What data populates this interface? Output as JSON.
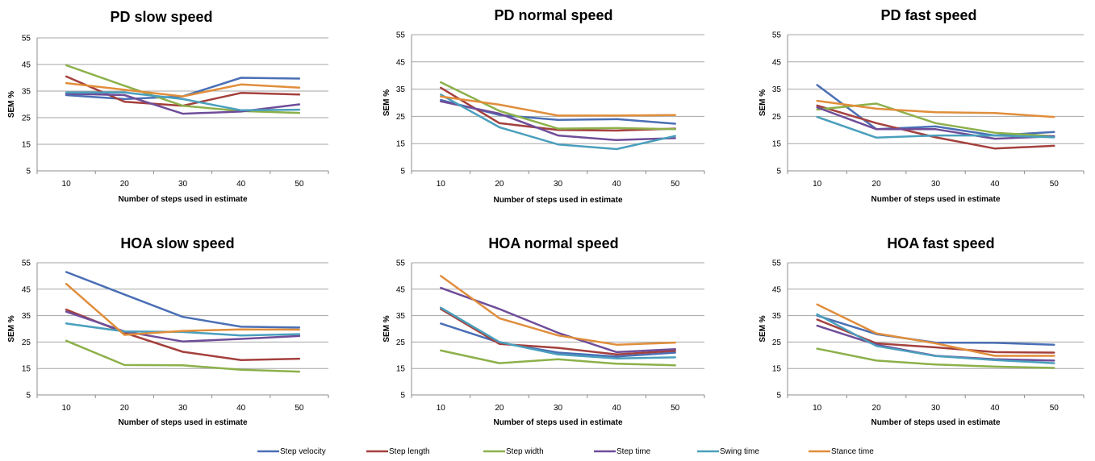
{
  "colors": {
    "Step velocity": "#4a6fb5",
    "Step length": "#a4403d",
    "Step width": "#8cb04a",
    "Step time": "#6f4d99",
    "Swing time": "#4a9fbd",
    "Stance time": "#e08e3b"
  },
  "legend_placement": "bottom-center",
  "chart_data": [
    {
      "type": "line",
      "title": "PD slow speed",
      "xlabel": "Number of steps used in estimate",
      "ylabel": "SEM %",
      "x": [
        10,
        20,
        30,
        40,
        50
      ],
      "yticks": [
        5,
        15,
        25,
        35,
        45,
        55
      ],
      "ylim": [
        5,
        55
      ],
      "grid": true,
      "series": [
        {
          "name": "Step velocity",
          "values": [
            33.5,
            32,
            33,
            40,
            39.7
          ]
        },
        {
          "name": "Step length",
          "values": [
            40.5,
            31,
            29.5,
            34.3,
            33.7
          ]
        },
        {
          "name": "Step width",
          "values": [
            44.7,
            37,
            29.5,
            27.5,
            26.8
          ]
        },
        {
          "name": "Step time",
          "values": [
            34,
            33.5,
            26.5,
            27.3,
            30
          ]
        },
        {
          "name": "Swing time",
          "values": [
            34.5,
            34.5,
            32,
            27.8,
            28
          ]
        },
        {
          "name": "Stance time",
          "values": [
            38,
            35.5,
            33,
            37.5,
            36.3
          ]
        }
      ]
    },
    {
      "type": "line",
      "title": "PD normal speed",
      "xlabel": "Number of steps used in estimate",
      "ylabel": "SEM %",
      "x": [
        10,
        20,
        30,
        40,
        50
      ],
      "yticks": [
        5,
        15,
        25,
        35,
        45,
        55
      ],
      "ylim": [
        5,
        55
      ],
      "grid": true,
      "series": [
        {
          "name": "Step velocity",
          "values": [
            31,
            25.5,
            23.7,
            24,
            22.3
          ]
        },
        {
          "name": "Step length",
          "values": [
            35.5,
            22.5,
            20,
            19.8,
            20.5
          ]
        },
        {
          "name": "Step width",
          "values": [
            37.5,
            27,
            20.5,
            20.7,
            20.3
          ]
        },
        {
          "name": "Step time",
          "values": [
            30.5,
            26,
            18,
            16.3,
            17
          ]
        },
        {
          "name": "Swing time",
          "values": [
            33,
            21,
            14.7,
            13,
            17.8
          ]
        },
        {
          "name": "Stance time",
          "values": [
            32.3,
            29.3,
            25.3,
            25.3,
            25.5
          ]
        }
      ]
    },
    {
      "type": "line",
      "title": "PD fast speed",
      "xlabel": "Number of steps used in estimate",
      "ylabel": "SEM %",
      "x": [
        10,
        20,
        30,
        40,
        50
      ],
      "yticks": [
        5,
        15,
        25,
        35,
        45,
        55
      ],
      "ylim": [
        5,
        55
      ],
      "grid": true,
      "series": [
        {
          "name": "Step velocity",
          "values": [
            36.5,
            20.3,
            21.3,
            18,
            19.3
          ]
        },
        {
          "name": "Step length",
          "values": [
            29,
            22.5,
            17.3,
            13.2,
            14.2
          ]
        },
        {
          "name": "Step width",
          "values": [
            27.5,
            29.7,
            22.5,
            19,
            17.7
          ]
        },
        {
          "name": "Step time",
          "values": [
            28.3,
            20.3,
            20.3,
            16.8,
            17.7
          ]
        },
        {
          "name": "Swing time",
          "values": [
            24.8,
            17.2,
            18,
            18,
            17.3
          ]
        },
        {
          "name": "Stance time",
          "values": [
            30.7,
            27.8,
            26.5,
            26.2,
            24.8
          ]
        }
      ]
    },
    {
      "type": "line",
      "title": "HOA slow speed",
      "xlabel": "Number of steps used in estimate",
      "ylabel": "SEM %",
      "x": [
        10,
        20,
        30,
        40,
        50
      ],
      "yticks": [
        5,
        15,
        25,
        35,
        45,
        55
      ],
      "ylim": [
        5,
        55
      ],
      "grid": true,
      "series": [
        {
          "name": "Step velocity",
          "values": [
            51.5,
            43,
            34.5,
            30.8,
            30.5
          ]
        },
        {
          "name": "Step length",
          "values": [
            37.3,
            28.5,
            21.3,
            18.2,
            18.7
          ]
        },
        {
          "name": "Step width",
          "values": [
            25.5,
            16.3,
            16.2,
            14.5,
            13.8
          ]
        },
        {
          "name": "Step time",
          "values": [
            36.5,
            29,
            25.2,
            26.2,
            27.3
          ]
        },
        {
          "name": "Swing time",
          "values": [
            32,
            29,
            28.8,
            27.5,
            28
          ]
        },
        {
          "name": "Stance time",
          "values": [
            47,
            27.7,
            29.2,
            29.8,
            29.7
          ]
        }
      ]
    },
    {
      "type": "line",
      "title": "HOA normal speed",
      "xlabel": "Number of steps used in estimate",
      "ylabel": "SEM %",
      "x": [
        10,
        20,
        30,
        40,
        50
      ],
      "yticks": [
        5,
        15,
        25,
        35,
        45,
        55
      ],
      "ylim": [
        5,
        55
      ],
      "grid": true,
      "series": [
        {
          "name": "Step velocity",
          "values": [
            32,
            24.8,
            21,
            19.5,
            21
          ]
        },
        {
          "name": "Step length",
          "values": [
            37.5,
            24.3,
            22.8,
            20.3,
            21.7
          ]
        },
        {
          "name": "Step width",
          "values": [
            21.8,
            17,
            18.5,
            16.8,
            16.2
          ]
        },
        {
          "name": "Step time",
          "values": [
            45.5,
            37.5,
            28.5,
            21.2,
            22.3
          ]
        },
        {
          "name": "Swing time",
          "values": [
            38,
            25,
            20.3,
            18.8,
            19.2
          ]
        },
        {
          "name": "Stance time",
          "values": [
            50,
            34,
            27.5,
            24,
            24.8
          ]
        }
      ]
    },
    {
      "type": "line",
      "title": "HOA fast speed",
      "xlabel": "Number of steps used in estimate",
      "ylabel": "SEM %",
      "x": [
        10,
        20,
        30,
        40,
        50
      ],
      "yticks": [
        5,
        15,
        25,
        35,
        45,
        55
      ],
      "ylim": [
        5,
        55
      ],
      "grid": true,
      "series": [
        {
          "name": "Step velocity",
          "values": [
            35,
            28,
            24.8,
            24.7,
            24
          ]
        },
        {
          "name": "Step length",
          "values": [
            33.5,
            24.5,
            23,
            21.2,
            21
          ]
        },
        {
          "name": "Step width",
          "values": [
            22.5,
            18,
            16.5,
            15.7,
            15.2
          ]
        },
        {
          "name": "Step time",
          "values": [
            31.2,
            24,
            19.8,
            18.5,
            18
          ]
        },
        {
          "name": "Swing time",
          "values": [
            35.5,
            23.5,
            19.7,
            18.2,
            17
          ]
        },
        {
          "name": "Stance time",
          "values": [
            39.2,
            28.3,
            24.5,
            19.8,
            19.8
          ]
        }
      ]
    }
  ],
  "legend": [
    "Step velocity",
    "Step length",
    "Step width",
    "Step time",
    "Swing time",
    "Stance time"
  ]
}
